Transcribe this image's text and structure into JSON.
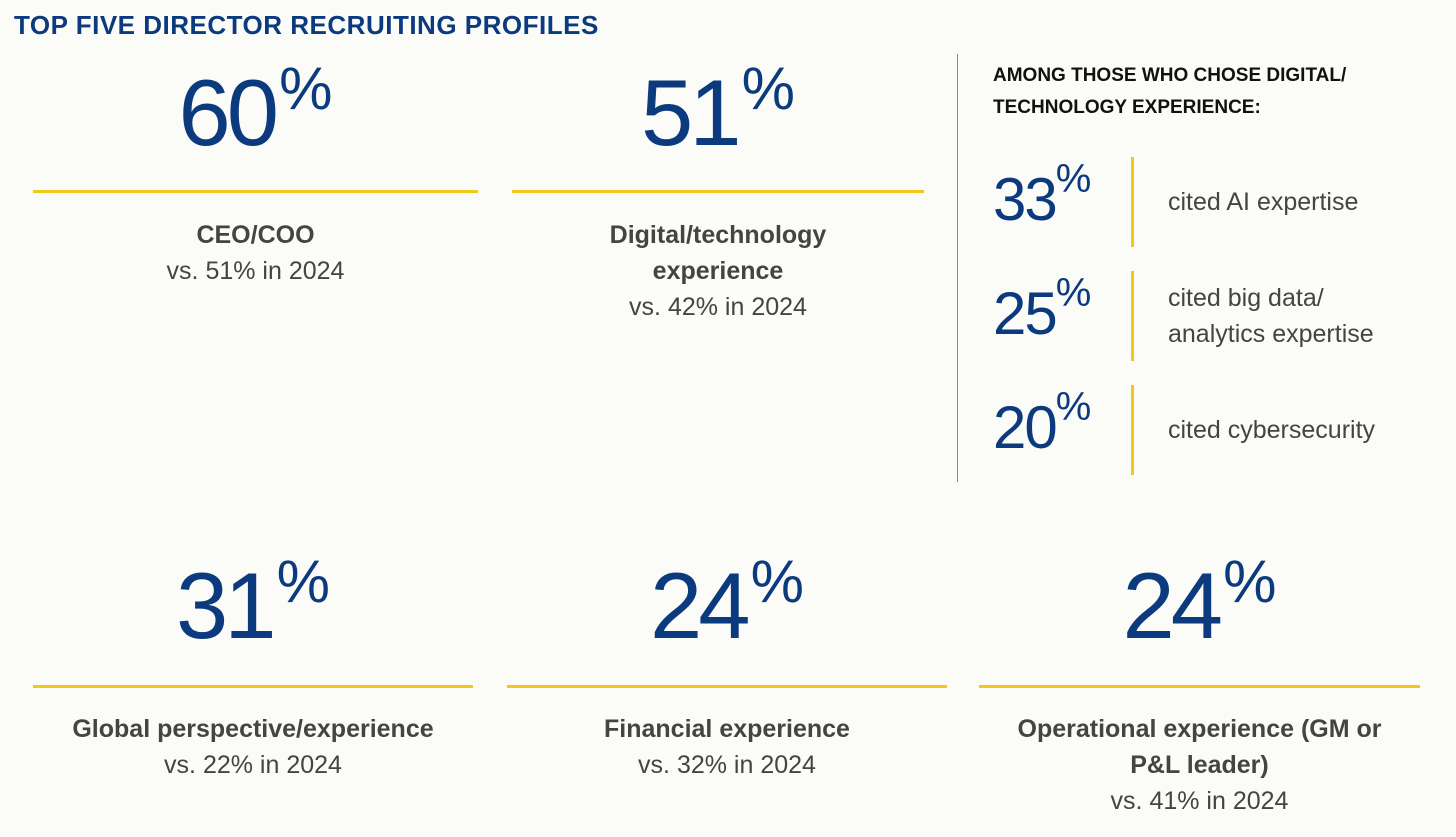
{
  "title": "TOP FIVE DIRECTOR RECRUITING PROFILES",
  "stats": [
    {
      "value": "60",
      "unit": "%",
      "label": "CEO/COO",
      "comparison": "vs. 51% in 2024"
    },
    {
      "value": "51",
      "unit": "%",
      "label": "Digital/technology experience",
      "comparison": "vs. 42% in 2024"
    },
    {
      "value": "31",
      "unit": "%",
      "label": "Global perspective/experience",
      "comparison": "vs. 22% in 2024"
    },
    {
      "value": "24",
      "unit": "%",
      "label": "Financial experience",
      "comparison": "vs. 32% in 2024"
    },
    {
      "value": "24",
      "unit": "%",
      "label": "Operational experience (GM or P&L leader)",
      "comparison": "vs. 41% in 2024"
    }
  ],
  "digital_breakdown": {
    "heading": "AMONG THOSE WHO CHOSE DIGITAL/ TECHNOLOGY EXPERIENCE:",
    "items": [
      {
        "value": "33",
        "unit": "%",
        "text": "cited AI expertise"
      },
      {
        "value": "25",
        "unit": "%",
        "text": "cited big data/ analytics expertise"
      },
      {
        "value": "20",
        "unit": "%",
        "text": "cited cybersecurity"
      }
    ]
  },
  "colors": {
    "navy": "#0b3a7e",
    "accent": "#f5c518",
    "text": "#444444"
  }
}
